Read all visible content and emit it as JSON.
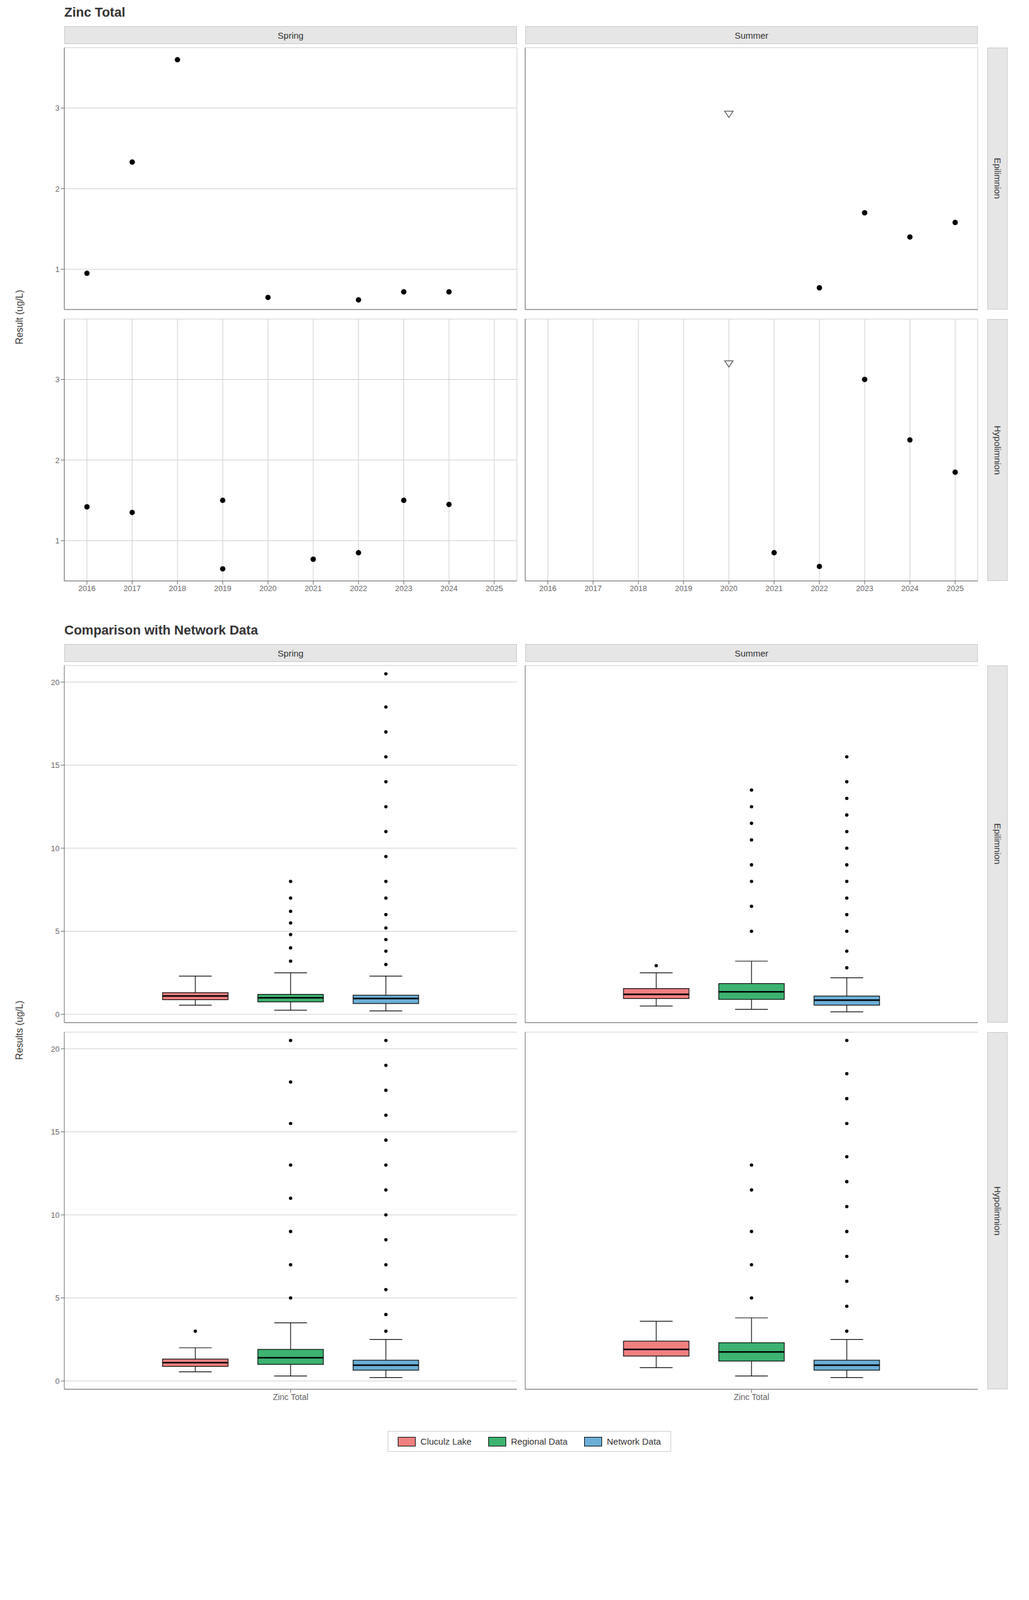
{
  "chart_data": [
    {
      "type": "scatter",
      "title": "Zinc Total",
      "y_label": "Result (ug/L)",
      "xlim": [
        2015.5,
        2025.5
      ],
      "xticks": [
        2016,
        2017,
        2018,
        2019,
        2020,
        2021,
        2022,
        2023,
        2024,
        2025
      ],
      "ylim": [
        0.5,
        3.75
      ],
      "yticks": [
        1,
        2,
        3
      ],
      "grid": true,
      "panels": [
        {
          "column": "Spring",
          "row": "Epilimnion",
          "series": [
            {
              "marker": "circle",
              "color": "#000000",
              "x": [
                2016,
                2017,
                2018,
                2020,
                2022,
                2023,
                2024
              ],
              "values": [
                0.95,
                2.33,
                3.6,
                0.65,
                0.62,
                0.72,
                0.72
              ]
            }
          ]
        },
        {
          "column": "Summer",
          "row": "Epilimnion",
          "series": [
            {
              "marker": "circle",
              "color": "#000000",
              "x": [
                2022,
                2023,
                2024,
                2025
              ],
              "values": [
                0.77,
                1.7,
                1.4,
                1.58
              ]
            },
            {
              "marker": "triangle_down",
              "color": "#666666",
              "x": [
                2020
              ],
              "values": [
                2.93
              ]
            }
          ]
        },
        {
          "column": "Spring",
          "row": "Hypolimnion",
          "series": [
            {
              "marker": "circle",
              "color": "#000000",
              "x": [
                2016,
                2017,
                2019,
                2019,
                2021,
                2022,
                2023,
                2024
              ],
              "values": [
                1.42,
                1.35,
                1.5,
                0.65,
                0.77,
                0.85,
                1.5,
                1.45
              ]
            }
          ]
        },
        {
          "column": "Summer",
          "row": "Hypolimnion",
          "series": [
            {
              "marker": "circle",
              "color": "#000000",
              "x": [
                2021,
                2022,
                2023,
                2024,
                2025
              ],
              "values": [
                0.85,
                0.68,
                3.0,
                2.25,
                1.85
              ]
            },
            {
              "marker": "triangle_down",
              "color": "#666666",
              "x": [
                2020
              ],
              "values": [
                3.2
              ]
            }
          ]
        }
      ]
    },
    {
      "type": "box",
      "title": "Comparison with Network Data",
      "y_label": "Results (ug/L)",
      "categories": [
        "Zinc Total"
      ],
      "ylim": [
        -0.5,
        21
      ],
      "yticks": [
        0,
        5,
        10,
        15,
        20
      ],
      "grid": "y",
      "legend": "bottom",
      "panels": [
        {
          "column": "Spring",
          "row": "Epilimnion"
        },
        {
          "column": "Summer",
          "row": "Epilimnion"
        },
        {
          "column": "Spring",
          "row": "Hypolimnion"
        },
        {
          "column": "Summer",
          "row": "Hypolimnion"
        }
      ],
      "series": [
        {
          "name": "Cluculz Lake",
          "color": "#F08080",
          "boxes": [
            {
              "q1": 0.88,
              "median": 1.1,
              "q3": 1.3,
              "whisker_low": 0.55,
              "whisker_high": 2.3,
              "outliers": []
            },
            {
              "q1": 0.95,
              "median": 1.2,
              "q3": 1.55,
              "whisker_low": 0.5,
              "whisker_high": 2.5,
              "outliers": [
                2.93
              ]
            },
            {
              "q1": 0.88,
              "median": 1.1,
              "q3": 1.32,
              "whisker_low": 0.55,
              "whisker_high": 2.0,
              "outliers": [
                3.0
              ]
            },
            {
              "q1": 1.5,
              "median": 1.9,
              "q3": 2.4,
              "whisker_low": 0.8,
              "whisker_high": 3.6,
              "outliers": []
            }
          ]
        },
        {
          "name": "Regional Data",
          "color": "#3CB371",
          "boxes": [
            {
              "q1": 0.75,
              "median": 1.0,
              "q3": 1.2,
              "whisker_low": 0.25,
              "whisker_high": 2.5,
              "outliers": [
                3.2,
                4.0,
                4.8,
                5.5,
                6.2,
                7.0,
                8.0
              ]
            },
            {
              "q1": 0.9,
              "median": 1.35,
              "q3": 1.85,
              "whisker_low": 0.3,
              "whisker_high": 3.2,
              "outliers": [
                5.0,
                6.5,
                8.0,
                9.0,
                10.5,
                11.5,
                12.5,
                13.5
              ]
            },
            {
              "q1": 1.0,
              "median": 1.4,
              "q3": 1.9,
              "whisker_low": 0.3,
              "whisker_high": 3.5,
              "outliers": [
                5.0,
                7.0,
                9.0,
                11.0,
                13.0,
                15.5,
                18.0,
                20.5
              ]
            },
            {
              "q1": 1.2,
              "median": 1.75,
              "q3": 2.3,
              "whisker_low": 0.3,
              "whisker_high": 3.8,
              "outliers": [
                5.0,
                7.0,
                9.0,
                11.5,
                13.0
              ]
            }
          ]
        },
        {
          "name": "Network Data",
          "color": "#6BAED6",
          "boxes": [
            {
              "q1": 0.65,
              "median": 0.95,
              "q3": 1.15,
              "whisker_low": 0.2,
              "whisker_high": 2.3,
              "outliers": [
                3.0,
                3.8,
                4.5,
                5.2,
                6.0,
                7.0,
                8.0,
                9.5,
                11.0,
                12.5,
                14.0,
                15.5,
                17.0,
                18.5,
                20.5
              ]
            },
            {
              "q1": 0.55,
              "median": 0.85,
              "q3": 1.1,
              "whisker_low": 0.15,
              "whisker_high": 2.2,
              "outliers": [
                2.8,
                3.8,
                5.0,
                6.0,
                7.0,
                8.0,
                9.0,
                10.0,
                11.0,
                12.0,
                13.0,
                14.0,
                15.5
              ]
            },
            {
              "q1": 0.65,
              "median": 0.95,
              "q3": 1.25,
              "whisker_low": 0.2,
              "whisker_high": 2.5,
              "outliers": [
                3.0,
                4.0,
                5.5,
                7.0,
                8.5,
                10.0,
                11.5,
                13.0,
                14.5,
                16.0,
                17.5,
                19.0,
                20.5
              ]
            },
            {
              "q1": 0.65,
              "median": 0.95,
              "q3": 1.25,
              "whisker_low": 0.2,
              "whisker_high": 2.5,
              "outliers": [
                3.0,
                4.5,
                6.0,
                7.5,
                9.0,
                10.5,
                12.0,
                13.5,
                15.5,
                17.0,
                18.5,
                20.5
              ]
            }
          ]
        }
      ]
    }
  ]
}
